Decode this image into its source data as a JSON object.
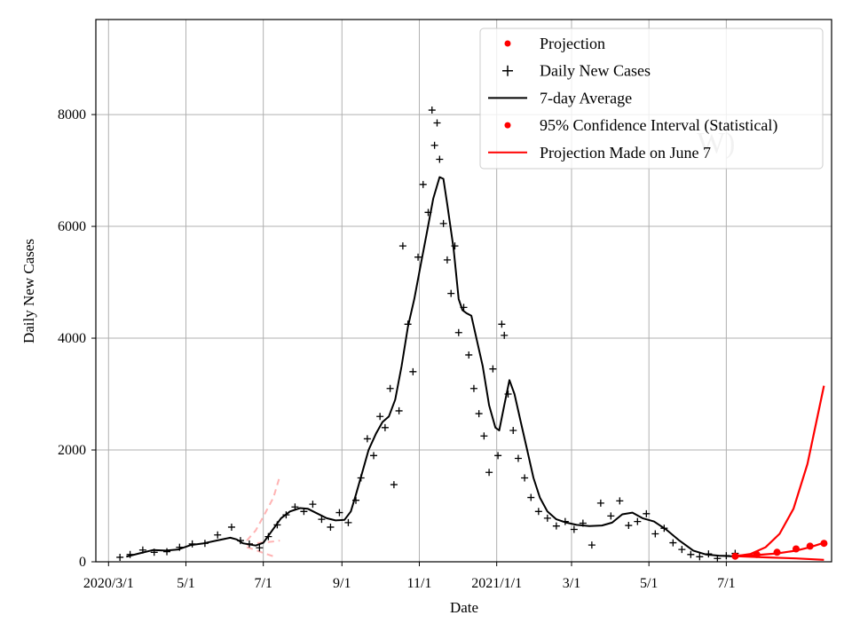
{
  "chart_data": {
    "type": "line",
    "title": "",
    "xlabel": "Date",
    "ylabel": "Daily New Cases",
    "ylim": [
      0,
      9700
    ],
    "xlim": [
      "2020-02-20",
      "2021-09-22"
    ],
    "y_ticks": [
      0,
      2000,
      4000,
      6000,
      8000
    ],
    "x_ticks": [
      {
        "date": "2020-03-01",
        "label": "2020/3/1"
      },
      {
        "date": "2020-05-01",
        "label": "5/1"
      },
      {
        "date": "2020-07-01",
        "label": "7/1"
      },
      {
        "date": "2020-09-01",
        "label": "9/1"
      },
      {
        "date": "2020-11-01",
        "label": "11/1"
      },
      {
        "date": "2021-01-01",
        "label": "2021/1/1"
      },
      {
        "date": "2021-03-01",
        "label": "3/1"
      },
      {
        "date": "2021-05-01",
        "label": "5/1"
      },
      {
        "date": "2021-07-01",
        "label": "7/1"
      }
    ],
    "grid": true,
    "legend_position": "top-right",
    "legend": [
      {
        "label": "Projection",
        "style": "red-dot"
      },
      {
        "label": "Daily New Cases",
        "style": "black-plus"
      },
      {
        "label": "7-day Average",
        "style": "black-line"
      },
      {
        "label": "95% Confidence Interval (Statistical)",
        "style": "red-dot"
      },
      {
        "label": "Projection Made on June 7",
        "style": "red-line"
      }
    ],
    "watermark": "W)",
    "colors": {
      "cases": "#000000",
      "average": "#000000",
      "projection": "#ff0000",
      "old_projection": "#ffb3b3",
      "grid": "#b0b0b0"
    },
    "series": [
      {
        "name": "7-day Average",
        "points": [
          [
            "2020-03-15",
            90
          ],
          [
            "2020-03-25",
            150
          ],
          [
            "2020-04-05",
            210
          ],
          [
            "2020-04-15",
            200
          ],
          [
            "2020-04-25",
            220
          ],
          [
            "2020-05-05",
            300
          ],
          [
            "2020-05-15",
            330
          ],
          [
            "2020-05-25",
            380
          ],
          [
            "2020-06-05",
            430
          ],
          [
            "2020-06-10",
            400
          ],
          [
            "2020-06-15",
            330
          ],
          [
            "2020-06-25",
            290
          ],
          [
            "2020-07-01",
            340
          ],
          [
            "2020-07-08",
            560
          ],
          [
            "2020-07-15",
            780
          ],
          [
            "2020-07-22",
            900
          ],
          [
            "2020-07-30",
            960
          ],
          [
            "2020-08-05",
            950
          ],
          [
            "2020-08-12",
            870
          ],
          [
            "2020-08-20",
            780
          ],
          [
            "2020-08-27",
            740
          ],
          [
            "2020-09-03",
            750
          ],
          [
            "2020-09-08",
            900
          ],
          [
            "2020-09-12",
            1200
          ],
          [
            "2020-09-17",
            1600
          ],
          [
            "2020-09-22",
            2000
          ],
          [
            "2020-09-28",
            2300
          ],
          [
            "2020-10-03",
            2500
          ],
          [
            "2020-10-08",
            2600
          ],
          [
            "2020-10-13",
            2900
          ],
          [
            "2020-10-18",
            3500
          ],
          [
            "2020-10-23",
            4200
          ],
          [
            "2020-10-28",
            4700
          ],
          [
            "2020-11-02",
            5300
          ],
          [
            "2020-11-07",
            5900
          ],
          [
            "2020-11-12",
            6500
          ],
          [
            "2020-11-17",
            6880
          ],
          [
            "2020-11-20",
            6850
          ],
          [
            "2020-11-23",
            6400
          ],
          [
            "2020-11-28",
            5600
          ],
          [
            "2020-12-02",
            4700
          ],
          [
            "2020-12-05",
            4500
          ],
          [
            "2020-12-08",
            4450
          ],
          [
            "2020-12-12",
            4400
          ],
          [
            "2020-12-17",
            3900
          ],
          [
            "2020-12-21",
            3500
          ],
          [
            "2020-12-26",
            2800
          ],
          [
            "2020-12-31",
            2400
          ],
          [
            "2021-01-03",
            2350
          ],
          [
            "2021-01-07",
            2800
          ],
          [
            "2021-01-11",
            3250
          ],
          [
            "2021-01-15",
            3000
          ],
          [
            "2021-01-20",
            2500
          ],
          [
            "2021-01-25",
            2000
          ],
          [
            "2021-01-30",
            1500
          ],
          [
            "2021-02-04",
            1150
          ],
          [
            "2021-02-10",
            900
          ],
          [
            "2021-02-17",
            760
          ],
          [
            "2021-02-25",
            700
          ],
          [
            "2021-03-05",
            660
          ],
          [
            "2021-03-15",
            640
          ],
          [
            "2021-03-25",
            650
          ],
          [
            "2021-04-02",
            700
          ],
          [
            "2021-04-10",
            850
          ],
          [
            "2021-04-18",
            880
          ],
          [
            "2021-04-26",
            780
          ],
          [
            "2021-05-05",
            720
          ],
          [
            "2021-05-15",
            570
          ],
          [
            "2021-05-25",
            380
          ],
          [
            "2021-06-05",
            200
          ],
          [
            "2021-06-15",
            130
          ],
          [
            "2021-06-25",
            110
          ],
          [
            "2021-07-05",
            100
          ],
          [
            "2021-07-10",
            105
          ]
        ]
      },
      {
        "name": "Projection Made on June 7",
        "points": [
          [
            "2021-07-08",
            100
          ],
          [
            "2021-07-20",
            140
          ],
          [
            "2021-08-01",
            260
          ],
          [
            "2021-08-12",
            500
          ],
          [
            "2021-08-23",
            950
          ],
          [
            "2021-09-03",
            1750
          ],
          [
            "2021-09-10",
            2500
          ],
          [
            "2021-09-16",
            3150
          ]
        ]
      },
      {
        "name": "95% Confidence Interval (Statistical)",
        "lower": [
          [
            "2021-07-08",
            100
          ],
          [
            "2021-08-01",
            80
          ],
          [
            "2021-08-25",
            60
          ],
          [
            "2021-09-16",
            35
          ]
        ],
        "upper": [
          [
            "2021-07-08",
            110
          ],
          [
            "2021-07-25",
            120
          ],
          [
            "2021-08-10",
            150
          ],
          [
            "2021-08-25",
            200
          ],
          [
            "2021-09-05",
            260
          ],
          [
            "2021-09-16",
            340
          ]
        ]
      },
      {
        "name": "Projection",
        "points": [
          [
            "2021-07-08",
            100
          ],
          [
            "2021-07-25",
            130
          ],
          [
            "2021-08-10",
            170
          ],
          [
            "2021-08-25",
            230
          ],
          [
            "2021-09-05",
            280
          ],
          [
            "2021-09-16",
            330
          ]
        ]
      },
      {
        "name": "Projection (2020)",
        "upper": [
          [
            "2020-06-18",
            380
          ],
          [
            "2020-06-25",
            560
          ],
          [
            "2020-07-02",
            850
          ],
          [
            "2020-07-09",
            1150
          ],
          [
            "2020-07-14",
            1530
          ]
        ],
        "middle": [
          [
            "2020-06-18",
            300
          ],
          [
            "2020-06-28",
            340
          ],
          [
            "2020-07-08",
            360
          ],
          [
            "2020-07-14",
            380
          ]
        ],
        "lower": [
          [
            "2020-06-18",
            260
          ],
          [
            "2020-06-25",
            210
          ],
          [
            "2020-07-02",
            150
          ],
          [
            "2020-07-10",
            90
          ]
        ]
      },
      {
        "name": "Daily New Cases",
        "points": [
          [
            "2020-03-10",
            80
          ],
          [
            "2020-03-18",
            130
          ],
          [
            "2020-03-28",
            210
          ],
          [
            "2020-04-06",
            170
          ],
          [
            "2020-04-16",
            180
          ],
          [
            "2020-04-26",
            260
          ],
          [
            "2020-05-06",
            320
          ],
          [
            "2020-05-16",
            330
          ],
          [
            "2020-05-26",
            480
          ],
          [
            "2020-06-06",
            620
          ],
          [
            "2020-06-13",
            380
          ],
          [
            "2020-06-20",
            320
          ],
          [
            "2020-06-28",
            250
          ],
          [
            "2020-07-05",
            450
          ],
          [
            "2020-07-12",
            660
          ],
          [
            "2020-07-19",
            840
          ],
          [
            "2020-07-26",
            980
          ],
          [
            "2020-08-02",
            900
          ],
          [
            "2020-08-09",
            1030
          ],
          [
            "2020-08-16",
            760
          ],
          [
            "2020-08-23",
            620
          ],
          [
            "2020-08-30",
            880
          ],
          [
            "2020-09-06",
            700
          ],
          [
            "2020-09-12",
            1100
          ],
          [
            "2020-09-16",
            1500
          ],
          [
            "2020-09-21",
            2200
          ],
          [
            "2020-09-26",
            1900
          ],
          [
            "2020-10-01",
            2600
          ],
          [
            "2020-10-05",
            2400
          ],
          [
            "2020-10-09",
            3100
          ],
          [
            "2020-10-12",
            1380
          ],
          [
            "2020-10-16",
            2700
          ],
          [
            "2020-10-19",
            5650
          ],
          [
            "2020-10-23",
            4250
          ],
          [
            "2020-10-27",
            3400
          ],
          [
            "2020-10-31",
            5450
          ],
          [
            "2020-11-04",
            6750
          ],
          [
            "2020-11-08",
            6250
          ],
          [
            "2020-11-11",
            8080
          ],
          [
            "2020-11-13",
            7450
          ],
          [
            "2020-11-15",
            7850
          ],
          [
            "2020-11-17",
            7200
          ],
          [
            "2020-11-20",
            6050
          ],
          [
            "2020-11-23",
            5400
          ],
          [
            "2020-11-26",
            4800
          ],
          [
            "2020-11-29",
            5650
          ],
          [
            "2020-12-02",
            4100
          ],
          [
            "2020-12-06",
            4550
          ],
          [
            "2020-12-10",
            3700
          ],
          [
            "2020-12-14",
            3100
          ],
          [
            "2020-12-18",
            2650
          ],
          [
            "2020-12-22",
            2250
          ],
          [
            "2020-12-26",
            1600
          ],
          [
            "2020-12-29",
            3450
          ],
          [
            "2021-01-02",
            1900
          ],
          [
            "2021-01-05",
            4250
          ],
          [
            "2021-01-07",
            4050
          ],
          [
            "2021-01-10",
            3000
          ],
          [
            "2021-01-14",
            2350
          ],
          [
            "2021-01-18",
            1850
          ],
          [
            "2021-01-23",
            1500
          ],
          [
            "2021-01-28",
            1150
          ],
          [
            "2021-02-03",
            900
          ],
          [
            "2021-02-10",
            780
          ],
          [
            "2021-02-17",
            640
          ],
          [
            "2021-02-24",
            720
          ],
          [
            "2021-03-03",
            580
          ],
          [
            "2021-03-10",
            690
          ],
          [
            "2021-03-17",
            300
          ],
          [
            "2021-03-24",
            1050
          ],
          [
            "2021-04-01",
            820
          ],
          [
            "2021-04-08",
            1090
          ],
          [
            "2021-04-15",
            650
          ],
          [
            "2021-04-22",
            720
          ],
          [
            "2021-04-29",
            860
          ],
          [
            "2021-05-06",
            500
          ],
          [
            "2021-05-13",
            600
          ],
          [
            "2021-05-20",
            340
          ],
          [
            "2021-05-27",
            220
          ],
          [
            "2021-06-03",
            130
          ],
          [
            "2021-06-10",
            90
          ],
          [
            "2021-06-17",
            140
          ],
          [
            "2021-06-24",
            60
          ],
          [
            "2021-07-01",
            110
          ],
          [
            "2021-07-08",
            150
          ]
        ]
      }
    ]
  }
}
